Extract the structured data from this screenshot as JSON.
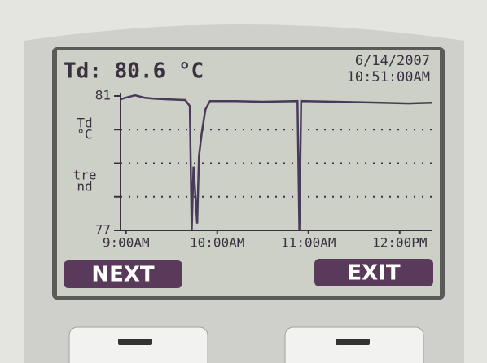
{
  "chart_data": {
    "type": "line",
    "title": "Td: 80.6 °C",
    "date": "6/14/2007",
    "time": "10:51:00AM",
    "y_label_lines": [
      "Td",
      "°C",
      "tre",
      "nd"
    ],
    "x": [
      8.94,
      9.0,
      9.1,
      9.2,
      9.3,
      9.45,
      9.65,
      9.7,
      9.72,
      9.74,
      9.78,
      9.8,
      9.83,
      9.87,
      9.92,
      10.2,
      10.5,
      10.88,
      10.9,
      10.92,
      11.3,
      11.8,
      12.1,
      12.35
    ],
    "values": [
      80.9,
      80.95,
      81.02,
      80.95,
      80.92,
      80.9,
      80.88,
      80.7,
      77.0,
      78.9,
      77.2,
      79.2,
      79.9,
      80.6,
      80.85,
      80.85,
      80.83,
      80.85,
      77.0,
      80.85,
      80.83,
      80.8,
      80.78,
      80.8
    ],
    "color": "#4a3a5a",
    "xlim": [
      8.94,
      12.35
    ],
    "xticks": [
      {
        "value": 9,
        "label": "9:00AM"
      },
      {
        "value": 10,
        "label": "10:00AM"
      },
      {
        "value": 11,
        "label": "11:00AM"
      },
      {
        "value": 12,
        "label": "12:00PM"
      }
    ],
    "ylim": [
      77,
      81
    ],
    "yticks": [
      77,
      81
    ],
    "ygrid": [
      78,
      79,
      80
    ],
    "grid": true
  },
  "buttons": [
    "NEXT",
    "EXIT"
  ]
}
